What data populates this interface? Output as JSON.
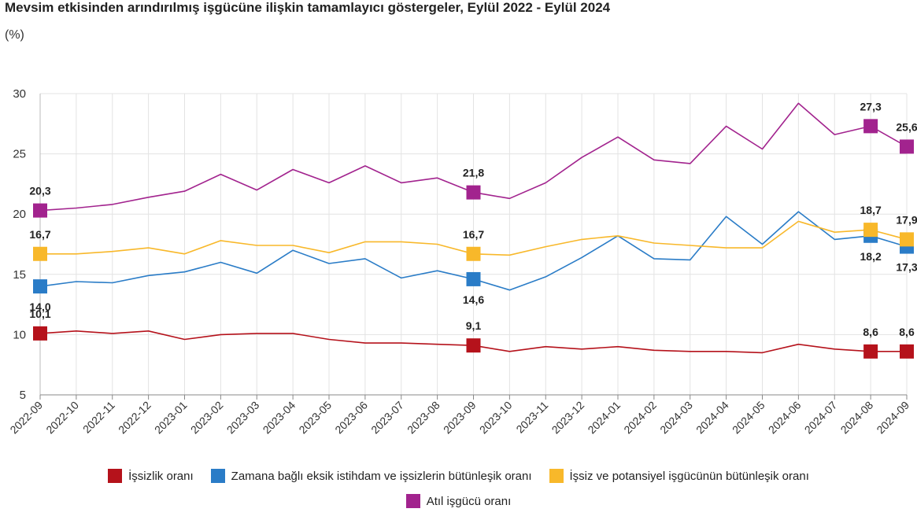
{
  "title": "Mevsim etkisinden arındırılmış işgücüne ilişkin tamamlayıcı göstergeler, Eylül 2022 - Eylül 2024",
  "subtitle": "(%)",
  "chart_data": {
    "type": "line",
    "ylim": [
      5,
      30
    ],
    "yticks": [
      5,
      10,
      15,
      20,
      25,
      30
    ],
    "grid": true,
    "legend_position": "bottom",
    "categories": [
      "2022-09",
      "2022-10",
      "2022-11",
      "2022-12",
      "2023-01",
      "2023-02",
      "2023-03",
      "2023-04",
      "2023-05",
      "2023-06",
      "2023-07",
      "2023-08",
      "2023-09",
      "2023-10",
      "2023-11",
      "2023-12",
      "2024-01",
      "2024-02",
      "2024-03",
      "2024-04",
      "2024-05",
      "2024-06",
      "2024-07",
      "2024-08",
      "2024-09"
    ],
    "marker_indices": [
      0,
      12,
      23,
      24
    ],
    "series": [
      {
        "name": "İşsizlik oranı",
        "color": "#b5121b",
        "values": [
          10.1,
          10.3,
          10.1,
          10.3,
          9.6,
          10.0,
          10.1,
          10.1,
          9.6,
          9.3,
          9.3,
          9.2,
          9.1,
          8.6,
          9.0,
          8.8,
          9.0,
          8.7,
          8.6,
          8.6,
          8.5,
          9.2,
          8.8,
          8.6,
          8.6
        ],
        "labels": [
          {
            "index": 0,
            "text": "10,1",
            "pos": "above"
          },
          {
            "index": 12,
            "text": "9,1",
            "pos": "above"
          },
          {
            "index": 23,
            "text": "8,6",
            "pos": "above"
          },
          {
            "index": 24,
            "text": "8,6",
            "pos": "above"
          }
        ]
      },
      {
        "name": "Zamana bağlı eksik istihdam ve işsizlerin bütünleşik oranı",
        "color": "#2a7cc7",
        "values": [
          14.0,
          14.4,
          14.3,
          14.9,
          15.2,
          16.0,
          15.1,
          17.0,
          15.9,
          16.3,
          14.7,
          15.3,
          14.6,
          13.7,
          14.8,
          16.4,
          18.2,
          16.3,
          16.2,
          19.8,
          17.5,
          20.2,
          17.9,
          18.2,
          17.3
        ],
        "labels": [
          {
            "index": 0,
            "text": "14,0",
            "pos": "below"
          },
          {
            "index": 12,
            "text": "14,6",
            "pos": "below"
          },
          {
            "index": 23,
            "text": "18,2",
            "pos": "below"
          },
          {
            "index": 24,
            "text": "17,3",
            "pos": "below"
          }
        ]
      },
      {
        "name": "İşsiz ve potansiyel işgücünün bütünleşik oranı",
        "color": "#f8b82a",
        "values": [
          16.7,
          16.7,
          16.9,
          17.2,
          16.7,
          17.8,
          17.4,
          17.4,
          16.8,
          17.7,
          17.7,
          17.5,
          16.7,
          16.6,
          17.3,
          17.9,
          18.2,
          17.6,
          17.4,
          17.2,
          17.2,
          19.4,
          18.5,
          18.7,
          17.9
        ],
        "labels": [
          {
            "index": 0,
            "text": "16,7",
            "pos": "above"
          },
          {
            "index": 12,
            "text": "16,7",
            "pos": "above"
          },
          {
            "index": 23,
            "text": "18,7",
            "pos": "above"
          },
          {
            "index": 24,
            "text": "17,9",
            "pos": "above"
          }
        ]
      },
      {
        "name": "Atıl işgücü oranı",
        "color": "#a2238e",
        "values": [
          20.3,
          20.5,
          20.8,
          21.4,
          21.9,
          23.3,
          22.0,
          23.7,
          22.6,
          24.0,
          22.6,
          23.0,
          21.8,
          21.3,
          22.6,
          24.7,
          26.4,
          24.5,
          24.2,
          27.3,
          25.4,
          29.2,
          26.6,
          27.3,
          25.6
        ],
        "labels": [
          {
            "index": 0,
            "text": "20,3",
            "pos": "above"
          },
          {
            "index": 12,
            "text": "21,8",
            "pos": "above"
          },
          {
            "index": 23,
            "text": "27,3",
            "pos": "above"
          },
          {
            "index": 24,
            "text": "25,6",
            "pos": "above"
          }
        ]
      }
    ]
  }
}
